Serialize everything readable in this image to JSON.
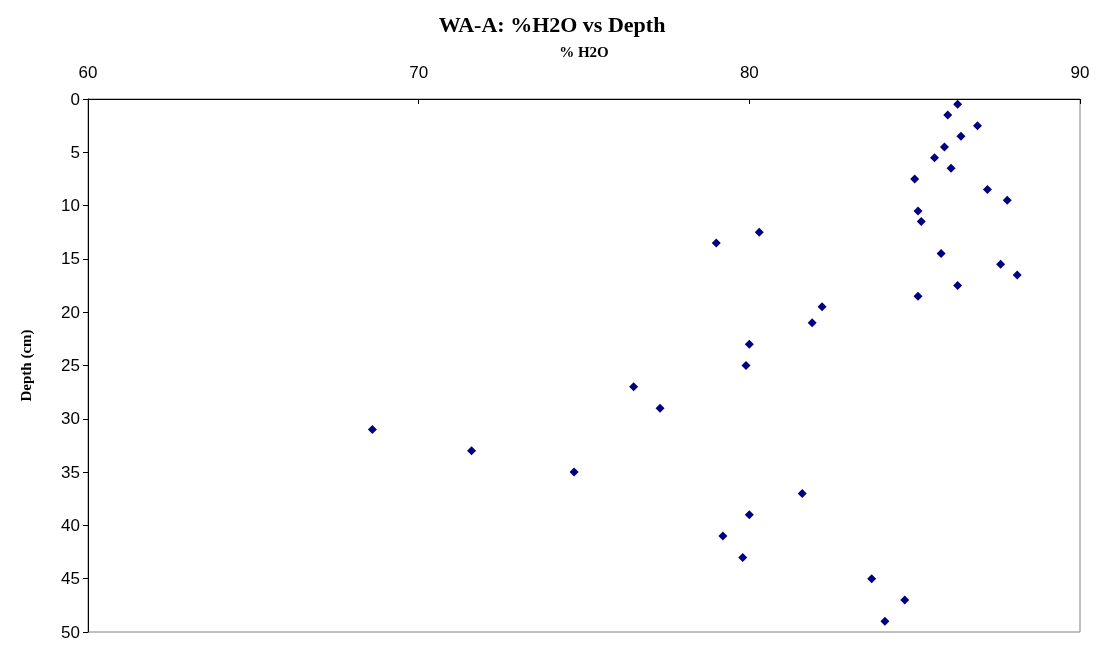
{
  "chart_data": {
    "type": "scatter",
    "title": "WA-A: %H2O vs Depth",
    "xlabel": "% H2O",
    "ylabel": "Depth (cm)",
    "x": [
      86.3,
      86.0,
      86.9,
      86.4,
      85.9,
      85.6,
      86.1,
      85.0,
      87.2,
      87.8,
      85.1,
      85.2,
      80.3,
      79.0,
      85.8,
      87.6,
      88.1,
      86.3,
      85.1,
      82.2,
      81.9,
      80.0,
      79.9,
      76.5,
      77.3,
      68.6,
      71.6,
      74.7,
      81.6,
      80.0,
      79.2,
      79.8,
      83.7,
      84.7,
      84.1
    ],
    "values": [
      0.5,
      1.5,
      2.5,
      3.5,
      4.5,
      5.5,
      6.5,
      7.5,
      8.5,
      9.5,
      10.5,
      11.5,
      12.5,
      13.5,
      14.5,
      15.5,
      16.5,
      17.5,
      18.5,
      19.5,
      21,
      23,
      25,
      27,
      29,
      31,
      33,
      35,
      37,
      39,
      41,
      43,
      45,
      47,
      49
    ],
    "color": "#000080",
    "marker": "diamond",
    "xlim": [
      60,
      90
    ],
    "xticks": [
      60,
      70,
      80,
      90
    ],
    "ylim": [
      50,
      0
    ],
    "yticks": [
      0,
      5,
      10,
      15,
      20,
      25,
      30,
      35,
      40,
      45,
      50
    ],
    "grid": false
  }
}
